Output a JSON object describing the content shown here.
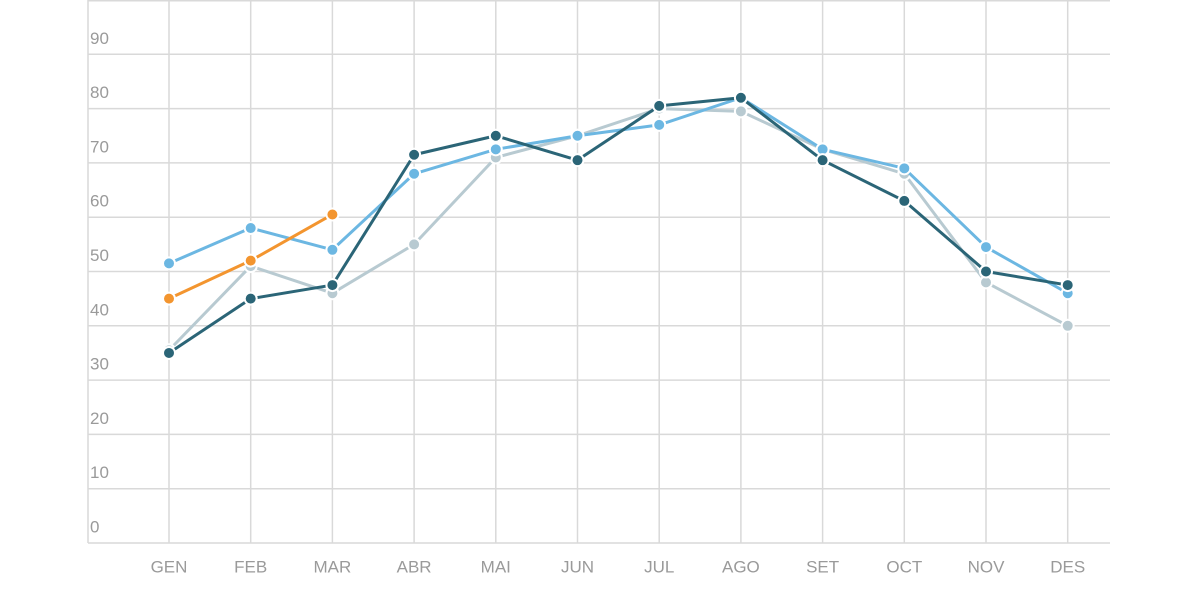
{
  "chart_data": {
    "type": "line",
    "categories": [
      "GEN",
      "FEB",
      "MAR",
      "ABR",
      "MAI",
      "JUN",
      "JUL",
      "AGO",
      "SET",
      "OCT",
      "NOV",
      "DES"
    ],
    "series": [
      {
        "color": "#b8cad1",
        "values": [
          35.5,
          51,
          46,
          55,
          71,
          75,
          80,
          79.5,
          72.5,
          68,
          48,
          40
        ]
      },
      {
        "color": "#6cb7e2",
        "values": [
          51.5,
          58,
          54,
          68,
          72.5,
          75,
          77,
          82,
          72.5,
          69,
          54.5,
          46
        ]
      },
      {
        "color": "#2b6577",
        "values": [
          35,
          45,
          47.5,
          71.5,
          75,
          70.5,
          80.5,
          82,
          70.5,
          63,
          50,
          47.5
        ]
      },
      {
        "color": "#f3952f",
        "values": [
          45,
          52,
          60.5,
          null,
          null,
          null,
          null,
          null,
          null,
          null,
          null,
          null
        ]
      }
    ],
    "ylim": [
      0,
      100
    ],
    "yticks": [
      0,
      10,
      20,
      30,
      40,
      50,
      60,
      70,
      80,
      90
    ],
    "grid": true
  }
}
